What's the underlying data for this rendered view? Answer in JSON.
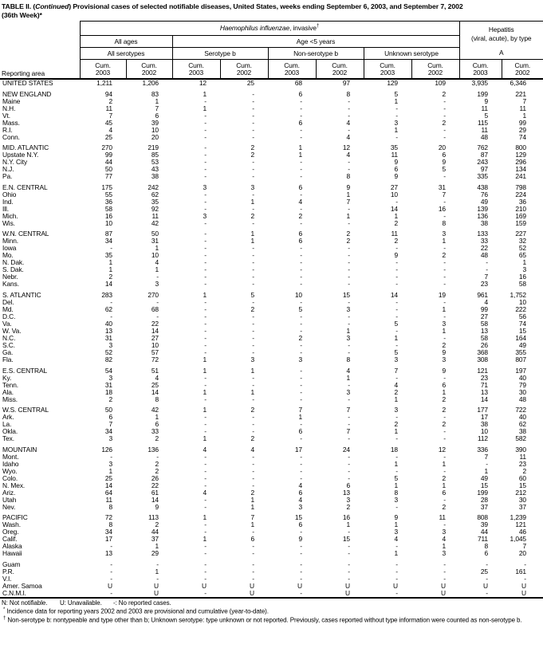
{
  "title": {
    "prefix": "TABLE II. (",
    "italic": "Continued",
    "rest": ") Provisional cases of selected notifiable diseases, United States, weeks ending September 6, 2003, and September 7, 2002",
    "line2": "(36th Week)*"
  },
  "table": {
    "header": {
      "reporting_area": "Reporting area",
      "haemophilus_italic": "Haemophilus influenzae",
      "haemophilus_rest": ", invasive",
      "haemophilus_sup": "†",
      "hepatitis_line1": "Hepatitis",
      "hepatitis_line2": "(viral, acute), by type",
      "all_ages": "All ages",
      "age_under5": "Age <5 years",
      "all_serotypes": "All serotypes",
      "serotype_b": "Serotype b",
      "non_serotype_b": "Non-serotype b",
      "unknown_serotype": "Unknown serotype",
      "hepatitis_a": "A",
      "cum": "Cum.",
      "year_2003": "2003",
      "year_2002": "2002"
    },
    "rows": [
      {
        "area": "UNITED STATES",
        "v": [
          "1,211",
          "1,206",
          "12",
          "25",
          "68",
          "97",
          "129",
          "109",
          "3,935",
          "6,346"
        ]
      },
      {
        "gap": true
      },
      {
        "area": "NEW ENGLAND",
        "v": [
          "94",
          "83",
          "1",
          "-",
          "6",
          "8",
          "5",
          "2",
          "199",
          "221"
        ]
      },
      {
        "area": "Maine",
        "v": [
          "2",
          "1",
          "-",
          "-",
          "-",
          "-",
          "1",
          "-",
          "9",
          "7"
        ]
      },
      {
        "area": "N.H.",
        "v": [
          "11",
          "7",
          "1",
          "-",
          "-",
          "-",
          "-",
          "-",
          "11",
          "11"
        ]
      },
      {
        "area": "Vt.",
        "v": [
          "7",
          "6",
          "-",
          "-",
          "-",
          "-",
          "-",
          "-",
          "5",
          "1"
        ]
      },
      {
        "area": "Mass.",
        "v": [
          "45",
          "39",
          "-",
          "-",
          "6",
          "4",
          "3",
          "2",
          "115",
          "99"
        ]
      },
      {
        "area": "R.I.",
        "v": [
          "4",
          "10",
          "-",
          "-",
          "-",
          "-",
          "1",
          "-",
          "11",
          "29"
        ]
      },
      {
        "area": "Conn.",
        "v": [
          "25",
          "20",
          "-",
          "-",
          "-",
          "4",
          "-",
          "-",
          "48",
          "74"
        ]
      },
      {
        "gap": true
      },
      {
        "area": "MID. ATLANTIC",
        "v": [
          "270",
          "219",
          "-",
          "2",
          "1",
          "12",
          "35",
          "20",
          "762",
          "800"
        ]
      },
      {
        "area": "Upstate N.Y.",
        "v": [
          "99",
          "85",
          "-",
          "2",
          "1",
          "4",
          "11",
          "6",
          "87",
          "129"
        ]
      },
      {
        "area": "N.Y. City",
        "v": [
          "44",
          "53",
          "-",
          "-",
          "-",
          "-",
          "9",
          "9",
          "243",
          "296"
        ]
      },
      {
        "area": "N.J.",
        "v": [
          "50",
          "43",
          "-",
          "-",
          "-",
          "-",
          "6",
          "5",
          "97",
          "134"
        ]
      },
      {
        "area": "Pa.",
        "v": [
          "77",
          "38",
          "-",
          "-",
          "-",
          "8",
          "9",
          "-",
          "335",
          "241"
        ]
      },
      {
        "gap": true
      },
      {
        "area": "E.N. CENTRAL",
        "v": [
          "175",
          "242",
          "3",
          "3",
          "6",
          "9",
          "27",
          "31",
          "438",
          "798"
        ]
      },
      {
        "area": "Ohio",
        "v": [
          "55",
          "62",
          "-",
          "-",
          "-",
          "1",
          "10",
          "7",
          "76",
          "224"
        ]
      },
      {
        "area": "Ind.",
        "v": [
          "36",
          "35",
          "-",
          "1",
          "4",
          "7",
          "-",
          "-",
          "49",
          "36"
        ]
      },
      {
        "area": "Ill.",
        "v": [
          "58",
          "92",
          "-",
          "-",
          "-",
          "-",
          "14",
          "16",
          "139",
          "210"
        ]
      },
      {
        "area": "Mich.",
        "v": [
          "16",
          "11",
          "3",
          "2",
          "2",
          "1",
          "1",
          "-",
          "136",
          "169"
        ]
      },
      {
        "area": "Wis.",
        "v": [
          "10",
          "42",
          "-",
          "-",
          "-",
          "-",
          "2",
          "8",
          "38",
          "159"
        ]
      },
      {
        "gap": true
      },
      {
        "area": "W.N. CENTRAL",
        "v": [
          "87",
          "50",
          "-",
          "1",
          "6",
          "2",
          "11",
          "3",
          "133",
          "227"
        ]
      },
      {
        "area": "Minn.",
        "v": [
          "34",
          "31",
          "-",
          "1",
          "6",
          "2",
          "2",
          "1",
          "33",
          "32"
        ]
      },
      {
        "area": "Iowa",
        "v": [
          "-",
          "1",
          "-",
          "-",
          "-",
          "-",
          "-",
          "-",
          "22",
          "52"
        ]
      },
      {
        "area": "Mo.",
        "v": [
          "35",
          "10",
          "-",
          "-",
          "-",
          "-",
          "9",
          "2",
          "48",
          "65"
        ]
      },
      {
        "area": "N. Dak.",
        "v": [
          "1",
          "4",
          "-",
          "-",
          "-",
          "-",
          "-",
          "-",
          "-",
          "1"
        ]
      },
      {
        "area": "S. Dak.",
        "v": [
          "1",
          "1",
          "-",
          "-",
          "-",
          "-",
          "-",
          "-",
          "-",
          "3"
        ]
      },
      {
        "area": "Nebr.",
        "v": [
          "2",
          "-",
          "-",
          "-",
          "-",
          "-",
          "-",
          "-",
          "7",
          "16"
        ]
      },
      {
        "area": "Kans.",
        "v": [
          "14",
          "3",
          "-",
          "-",
          "-",
          "-",
          "-",
          "-",
          "23",
          "58"
        ]
      },
      {
        "gap": true
      },
      {
        "area": "S. ATLANTIC",
        "v": [
          "283",
          "270",
          "1",
          "5",
          "10",
          "15",
          "14",
          "19",
          "961",
          "1,752"
        ]
      },
      {
        "area": "Del.",
        "v": [
          "-",
          "-",
          "-",
          "-",
          "-",
          "-",
          "-",
          "-",
          "4",
          "10"
        ]
      },
      {
        "area": "Md.",
        "v": [
          "62",
          "68",
          "-",
          "2",
          "5",
          "3",
          "-",
          "1",
          "99",
          "222"
        ]
      },
      {
        "area": "D.C.",
        "v": [
          "-",
          "-",
          "-",
          "-",
          "-",
          "-",
          "-",
          "-",
          "27",
          "56"
        ]
      },
      {
        "area": "Va.",
        "v": [
          "40",
          "22",
          "-",
          "-",
          "-",
          "-",
          "5",
          "3",
          "58",
          "74"
        ]
      },
      {
        "area": "W. Va.",
        "v": [
          "13",
          "14",
          "-",
          "-",
          "-",
          "1",
          "-",
          "1",
          "13",
          "15"
        ]
      },
      {
        "area": "N.C.",
        "v": [
          "31",
          "27",
          "-",
          "-",
          "2",
          "3",
          "1",
          "-",
          "58",
          "164"
        ]
      },
      {
        "area": "S.C.",
        "v": [
          "3",
          "10",
          "-",
          "-",
          "-",
          "-",
          "-",
          "2",
          "26",
          "49"
        ]
      },
      {
        "area": "Ga.",
        "v": [
          "52",
          "57",
          "-",
          "-",
          "-",
          "-",
          "5",
          "9",
          "368",
          "355"
        ]
      },
      {
        "area": "Fla.",
        "v": [
          "82",
          "72",
          "1",
          "3",
          "3",
          "8",
          "3",
          "3",
          "308",
          "807"
        ]
      },
      {
        "gap": true
      },
      {
        "area": "E.S. CENTRAL",
        "v": [
          "54",
          "51",
          "1",
          "1",
          "-",
          "4",
          "7",
          "9",
          "121",
          "197"
        ]
      },
      {
        "area": "Ky.",
        "v": [
          "3",
          "4",
          "-",
          "-",
          "-",
          "1",
          "-",
          "-",
          "23",
          "40"
        ]
      },
      {
        "area": "Tenn.",
        "v": [
          "31",
          "25",
          "-",
          "-",
          "-",
          "-",
          "4",
          "6",
          "71",
          "79"
        ]
      },
      {
        "area": "Ala.",
        "v": [
          "18",
          "14",
          "1",
          "1",
          "-",
          "3",
          "2",
          "1",
          "13",
          "30"
        ]
      },
      {
        "area": "Miss.",
        "v": [
          "2",
          "8",
          "-",
          "-",
          "-",
          "-",
          "1",
          "2",
          "14",
          "48"
        ]
      },
      {
        "gap": true
      },
      {
        "area": "W.S. CENTRAL",
        "v": [
          "50",
          "42",
          "1",
          "2",
          "7",
          "7",
          "3",
          "2",
          "177",
          "722"
        ]
      },
      {
        "area": "Ark.",
        "v": [
          "6",
          "1",
          "-",
          "-",
          "1",
          "-",
          "-",
          "-",
          "17",
          "40"
        ]
      },
      {
        "area": "La.",
        "v": [
          "7",
          "6",
          "-",
          "-",
          "-",
          "-",
          "2",
          "2",
          "38",
          "62"
        ]
      },
      {
        "area": "Okla.",
        "v": [
          "34",
          "33",
          "-",
          "-",
          "6",
          "7",
          "1",
          "-",
          "10",
          "38"
        ]
      },
      {
        "area": "Tex.",
        "v": [
          "3",
          "2",
          "1",
          "2",
          "-",
          "-",
          "-",
          "-",
          "112",
          "582"
        ]
      },
      {
        "gap": true
      },
      {
        "area": "MOUNTAIN",
        "v": [
          "126",
          "136",
          "4",
          "4",
          "17",
          "24",
          "18",
          "12",
          "336",
          "390"
        ]
      },
      {
        "area": "Mont.",
        "v": [
          "-",
          "-",
          "-",
          "-",
          "-",
          "-",
          "-",
          "-",
          "7",
          "11"
        ]
      },
      {
        "area": "Idaho",
        "v": [
          "3",
          "2",
          "-",
          "-",
          "-",
          "-",
          "1",
          "1",
          "-",
          "23"
        ]
      },
      {
        "area": "Wyo.",
        "v": [
          "1",
          "2",
          "-",
          "-",
          "-",
          "-",
          "-",
          "-",
          "1",
          "2"
        ]
      },
      {
        "area": "Colo.",
        "v": [
          "25",
          "26",
          "-",
          "-",
          "-",
          "-",
          "5",
          "2",
          "49",
          "60"
        ]
      },
      {
        "area": "N. Mex.",
        "v": [
          "14",
          "22",
          "-",
          "-",
          "4",
          "6",
          "1",
          "1",
          "15",
          "15"
        ]
      },
      {
        "area": "Ariz.",
        "v": [
          "64",
          "61",
          "4",
          "2",
          "6",
          "13",
          "8",
          "6",
          "199",
          "212"
        ]
      },
      {
        "area": "Utah",
        "v": [
          "11",
          "14",
          "-",
          "1",
          "4",
          "3",
          "3",
          "-",
          "28",
          "30"
        ]
      },
      {
        "area": "Nev.",
        "v": [
          "8",
          "9",
          "-",
          "1",
          "3",
          "2",
          "-",
          "2",
          "37",
          "37"
        ]
      },
      {
        "gap": true
      },
      {
        "area": "PACIFIC",
        "v": [
          "72",
          "113",
          "1",
          "7",
          "15",
          "16",
          "9",
          "11",
          "808",
          "1,239"
        ]
      },
      {
        "area": "Wash.",
        "v": [
          "8",
          "2",
          "-",
          "1",
          "6",
          "1",
          "1",
          "-",
          "39",
          "121"
        ]
      },
      {
        "area": "Oreg.",
        "v": [
          "34",
          "44",
          "-",
          "-",
          "-",
          "-",
          "3",
          "3",
          "44",
          "46"
        ]
      },
      {
        "area": "Calif.",
        "v": [
          "17",
          "37",
          "1",
          "6",
          "9",
          "15",
          "4",
          "4",
          "711",
          "1,045"
        ]
      },
      {
        "area": "Alaska",
        "v": [
          "-",
          "1",
          "-",
          "-",
          "-",
          "-",
          "-",
          "1",
          "8",
          "7"
        ]
      },
      {
        "area": "Hawaii",
        "v": [
          "13",
          "29",
          "-",
          "-",
          "-",
          "-",
          "1",
          "3",
          "6",
          "20"
        ]
      },
      {
        "gap": true
      },
      {
        "area": "Guam",
        "v": [
          "-",
          "-",
          "-",
          "-",
          "-",
          "-",
          "-",
          "-",
          "-",
          "-"
        ]
      },
      {
        "area": "P.R.",
        "v": [
          "-",
          "1",
          "-",
          "-",
          "-",
          "-",
          "-",
          "-",
          "25",
          "161"
        ]
      },
      {
        "area": "V.I.",
        "v": [
          "-",
          "-",
          "-",
          "-",
          "-",
          "-",
          "-",
          "-",
          "-",
          "-"
        ]
      },
      {
        "area": "Amer. Samoa",
        "v": [
          "U",
          "U",
          "U",
          "U",
          "U",
          "U",
          "U",
          "U",
          "U",
          "U"
        ]
      },
      {
        "area": "C.N.M.I.",
        "v": [
          "-",
          "U",
          "-",
          "U",
          "-",
          "U",
          "-",
          "U",
          "-",
          "U"
        ]
      }
    ]
  },
  "footnotes": {
    "legend_n": "N: Not notifiable.",
    "legend_u": "U: Unavailable.",
    "legend_dash": "-: No reported cases.",
    "star_sym": "*",
    "star_text": "Incidence data for reporting years 2002 and 2003 are provisional and cumulative (year-to-date).",
    "dagger_sym": "†",
    "dagger_text": "Non-serotype b: nontypeable and type other than b; Unknown serotype: type unknown or not reported. Previously, cases reported without type information were counted as non-serotype b."
  }
}
